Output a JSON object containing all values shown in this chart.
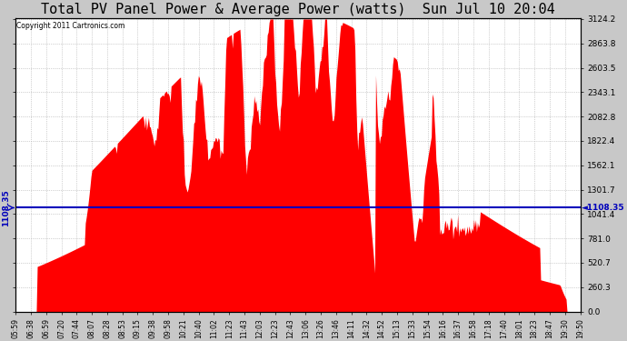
{
  "title": "Total PV Panel Power & Average Power (watts)  Sun Jul 10 20:04",
  "copyright": "Copyright 2011 Cartronics.com",
  "average_power": 1108.35,
  "y_max": 3124.2,
  "y_ticks": [
    0.0,
    260.3,
    520.7,
    781.0,
    1041.4,
    1301.7,
    1562.1,
    1822.4,
    2082.8,
    2343.1,
    2603.5,
    2863.8,
    3124.2
  ],
  "background_color": "#c8c8c8",
  "plot_bg_color": "#ffffff",
  "fill_color": "#ff0000",
  "line_color": "#0000bb",
  "title_fontsize": 11,
  "avg_label": "1108.35",
  "x_labels": [
    "05:59",
    "06:38",
    "06:59",
    "07:20",
    "07:44",
    "08:07",
    "08:28",
    "08:53",
    "09:15",
    "09:38",
    "09:58",
    "10:21",
    "10:40",
    "11:02",
    "11:23",
    "11:43",
    "12:03",
    "12:23",
    "12:43",
    "13:06",
    "13:26",
    "13:46",
    "14:11",
    "14:32",
    "14:52",
    "15:13",
    "15:33",
    "15:54",
    "16:16",
    "16:37",
    "16:58",
    "17:18",
    "17:40",
    "18:01",
    "18:23",
    "18:47",
    "19:30",
    "19:50"
  ]
}
